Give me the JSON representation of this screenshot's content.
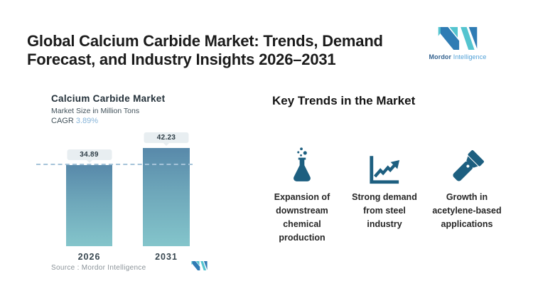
{
  "header": {
    "title": "Global Calcium Carbide Market: Trends, Demand Forecast, and Industry Insights 2026–2031",
    "title_line1": "Global Calcium Carbide Market: Trends, Demand",
    "title_line2": "Forecast, and Industry Insights 2026–2031",
    "logo": {
      "brand_bold": "Mordor",
      "brand_light": "Intelligence"
    }
  },
  "chart": {
    "title": "Calcium Carbide Market",
    "subtitle": "Market Size in Million Tons",
    "cagr_label": "CAGR",
    "cagr_value": "3.89%",
    "source_label": "Source :  Mordor Intelligence"
  },
  "chart_data": {
    "type": "bar",
    "title": "Calcium Carbide Market",
    "ylabel": "Market Size in Million Tons",
    "categories": [
      "2026",
      "2031"
    ],
    "values": [
      34.89,
      42.23
    ],
    "value_labels": [
      "34.89",
      "42.23"
    ],
    "cagr": "3.89%",
    "ylim": [
      0,
      45
    ],
    "grid": false,
    "legend": false,
    "reference_line_at": 34.89,
    "bar_gradient_top": "#5889aa",
    "bar_gradient_bottom": "#84c5cb"
  },
  "trends": {
    "heading": "Key Trends in the Market",
    "items": [
      {
        "icon": "flask-icon",
        "label": "Expansion of downstream chemical production"
      },
      {
        "icon": "growth-chart-icon",
        "label": "Strong demand from steel industry"
      },
      {
        "icon": "flashlight-icon",
        "label": "Growth in acetylene-based applications"
      }
    ]
  },
  "colors": {
    "icon_blue": "#1d5f80",
    "logo_dark_blue": "#2f7cb4",
    "logo_teal": "#54c4cf",
    "cagr_accent": "#84b3d8",
    "dashed_reference": "#a5c3d9",
    "value_pill_bg": "#e8eef1"
  }
}
